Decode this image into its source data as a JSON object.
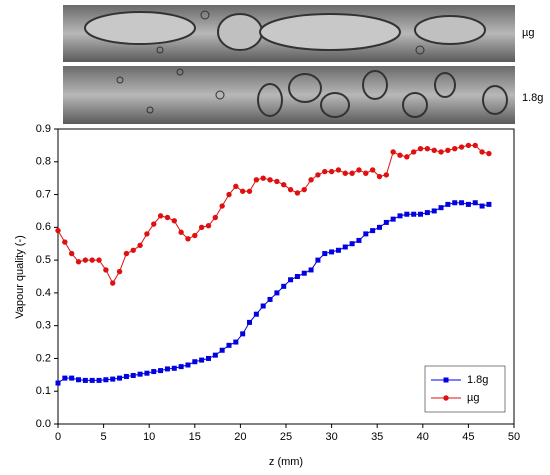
{
  "image_labels": [
    "µg",
    "1.8g"
  ],
  "chart_data": {
    "type": "line",
    "x_label": "z (mm)",
    "y_label": "Vapour quality (-)",
    "xlim": [
      0,
      50
    ],
    "xticks": [
      0,
      5,
      10,
      15,
      20,
      25,
      30,
      35,
      40,
      45,
      50
    ],
    "ylim": [
      0,
      0.9
    ],
    "yticks": [
      {
        "value": 0,
        "label": "0.0"
      },
      0.1,
      0.2,
      0.3,
      0.4,
      0.5,
      0.6,
      0.7,
      0.8,
      0.9
    ],
    "grid": false,
    "legend": "lower right",
    "x": [
      0,
      0.75,
      1.5,
      2.25,
      3,
      3.75,
      4.5,
      5.25,
      6,
      6.75,
      7.5,
      8.25,
      9,
      9.75,
      10.5,
      11.25,
      12,
      12.75,
      13.5,
      14.25,
      15,
      15.75,
      16.5,
      17.25,
      18,
      18.75,
      19.5,
      20.25,
      21,
      21.75,
      22.5,
      23.25,
      24,
      24.75,
      25.5,
      26.25,
      27,
      27.75,
      28.5,
      29.25,
      30,
      30.75,
      31.5,
      32.25,
      33,
      33.75,
      34.5,
      35.25,
      36,
      36.75,
      37.5,
      38.25,
      39,
      39.75,
      40.5,
      41.25,
      42,
      42.75,
      43.5,
      44.25,
      45,
      45.75,
      46.5,
      47.25
    ],
    "series": [
      {
        "name": "1.8g",
        "color": "#0000e0",
        "marker": "square",
        "values": [
          0.125,
          0.14,
          0.14,
          0.135,
          0.133,
          0.133,
          0.133,
          0.135,
          0.137,
          0.14,
          0.145,
          0.148,
          0.152,
          0.155,
          0.16,
          0.163,
          0.168,
          0.17,
          0.175,
          0.18,
          0.19,
          0.195,
          0.2,
          0.21,
          0.225,
          0.24,
          0.25,
          0.275,
          0.31,
          0.335,
          0.36,
          0.38,
          0.4,
          0.42,
          0.44,
          0.45,
          0.46,
          0.47,
          0.5,
          0.52,
          0.525,
          0.53,
          0.54,
          0.55,
          0.56,
          0.58,
          0.59,
          0.6,
          0.615,
          0.625,
          0.635,
          0.64,
          0.64,
          0.64,
          0.645,
          0.65,
          0.66,
          0.67,
          0.675,
          0.675,
          0.67,
          0.675,
          0.665,
          0.67
        ]
      },
      {
        "name": "µg",
        "color": "#e01010",
        "marker": "circle",
        "values": [
          0.59,
          0.555,
          0.52,
          0.495,
          0.5,
          0.5,
          0.5,
          0.47,
          0.43,
          0.465,
          0.52,
          0.53,
          0.545,
          0.58,
          0.61,
          0.635,
          0.63,
          0.62,
          0.585,
          0.565,
          0.575,
          0.6,
          0.605,
          0.63,
          0.665,
          0.7,
          0.725,
          0.71,
          0.71,
          0.745,
          0.75,
          0.745,
          0.74,
          0.73,
          0.715,
          0.705,
          0.715,
          0.745,
          0.76,
          0.77,
          0.77,
          0.775,
          0.765,
          0.765,
          0.775,
          0.765,
          0.775,
          0.755,
          0.76,
          0.83,
          0.82,
          0.815,
          0.83,
          0.84,
          0.84,
          0.835,
          0.83,
          0.835,
          0.84,
          0.845,
          0.85,
          0.85,
          0.83,
          0.825
        ]
      }
    ]
  }
}
